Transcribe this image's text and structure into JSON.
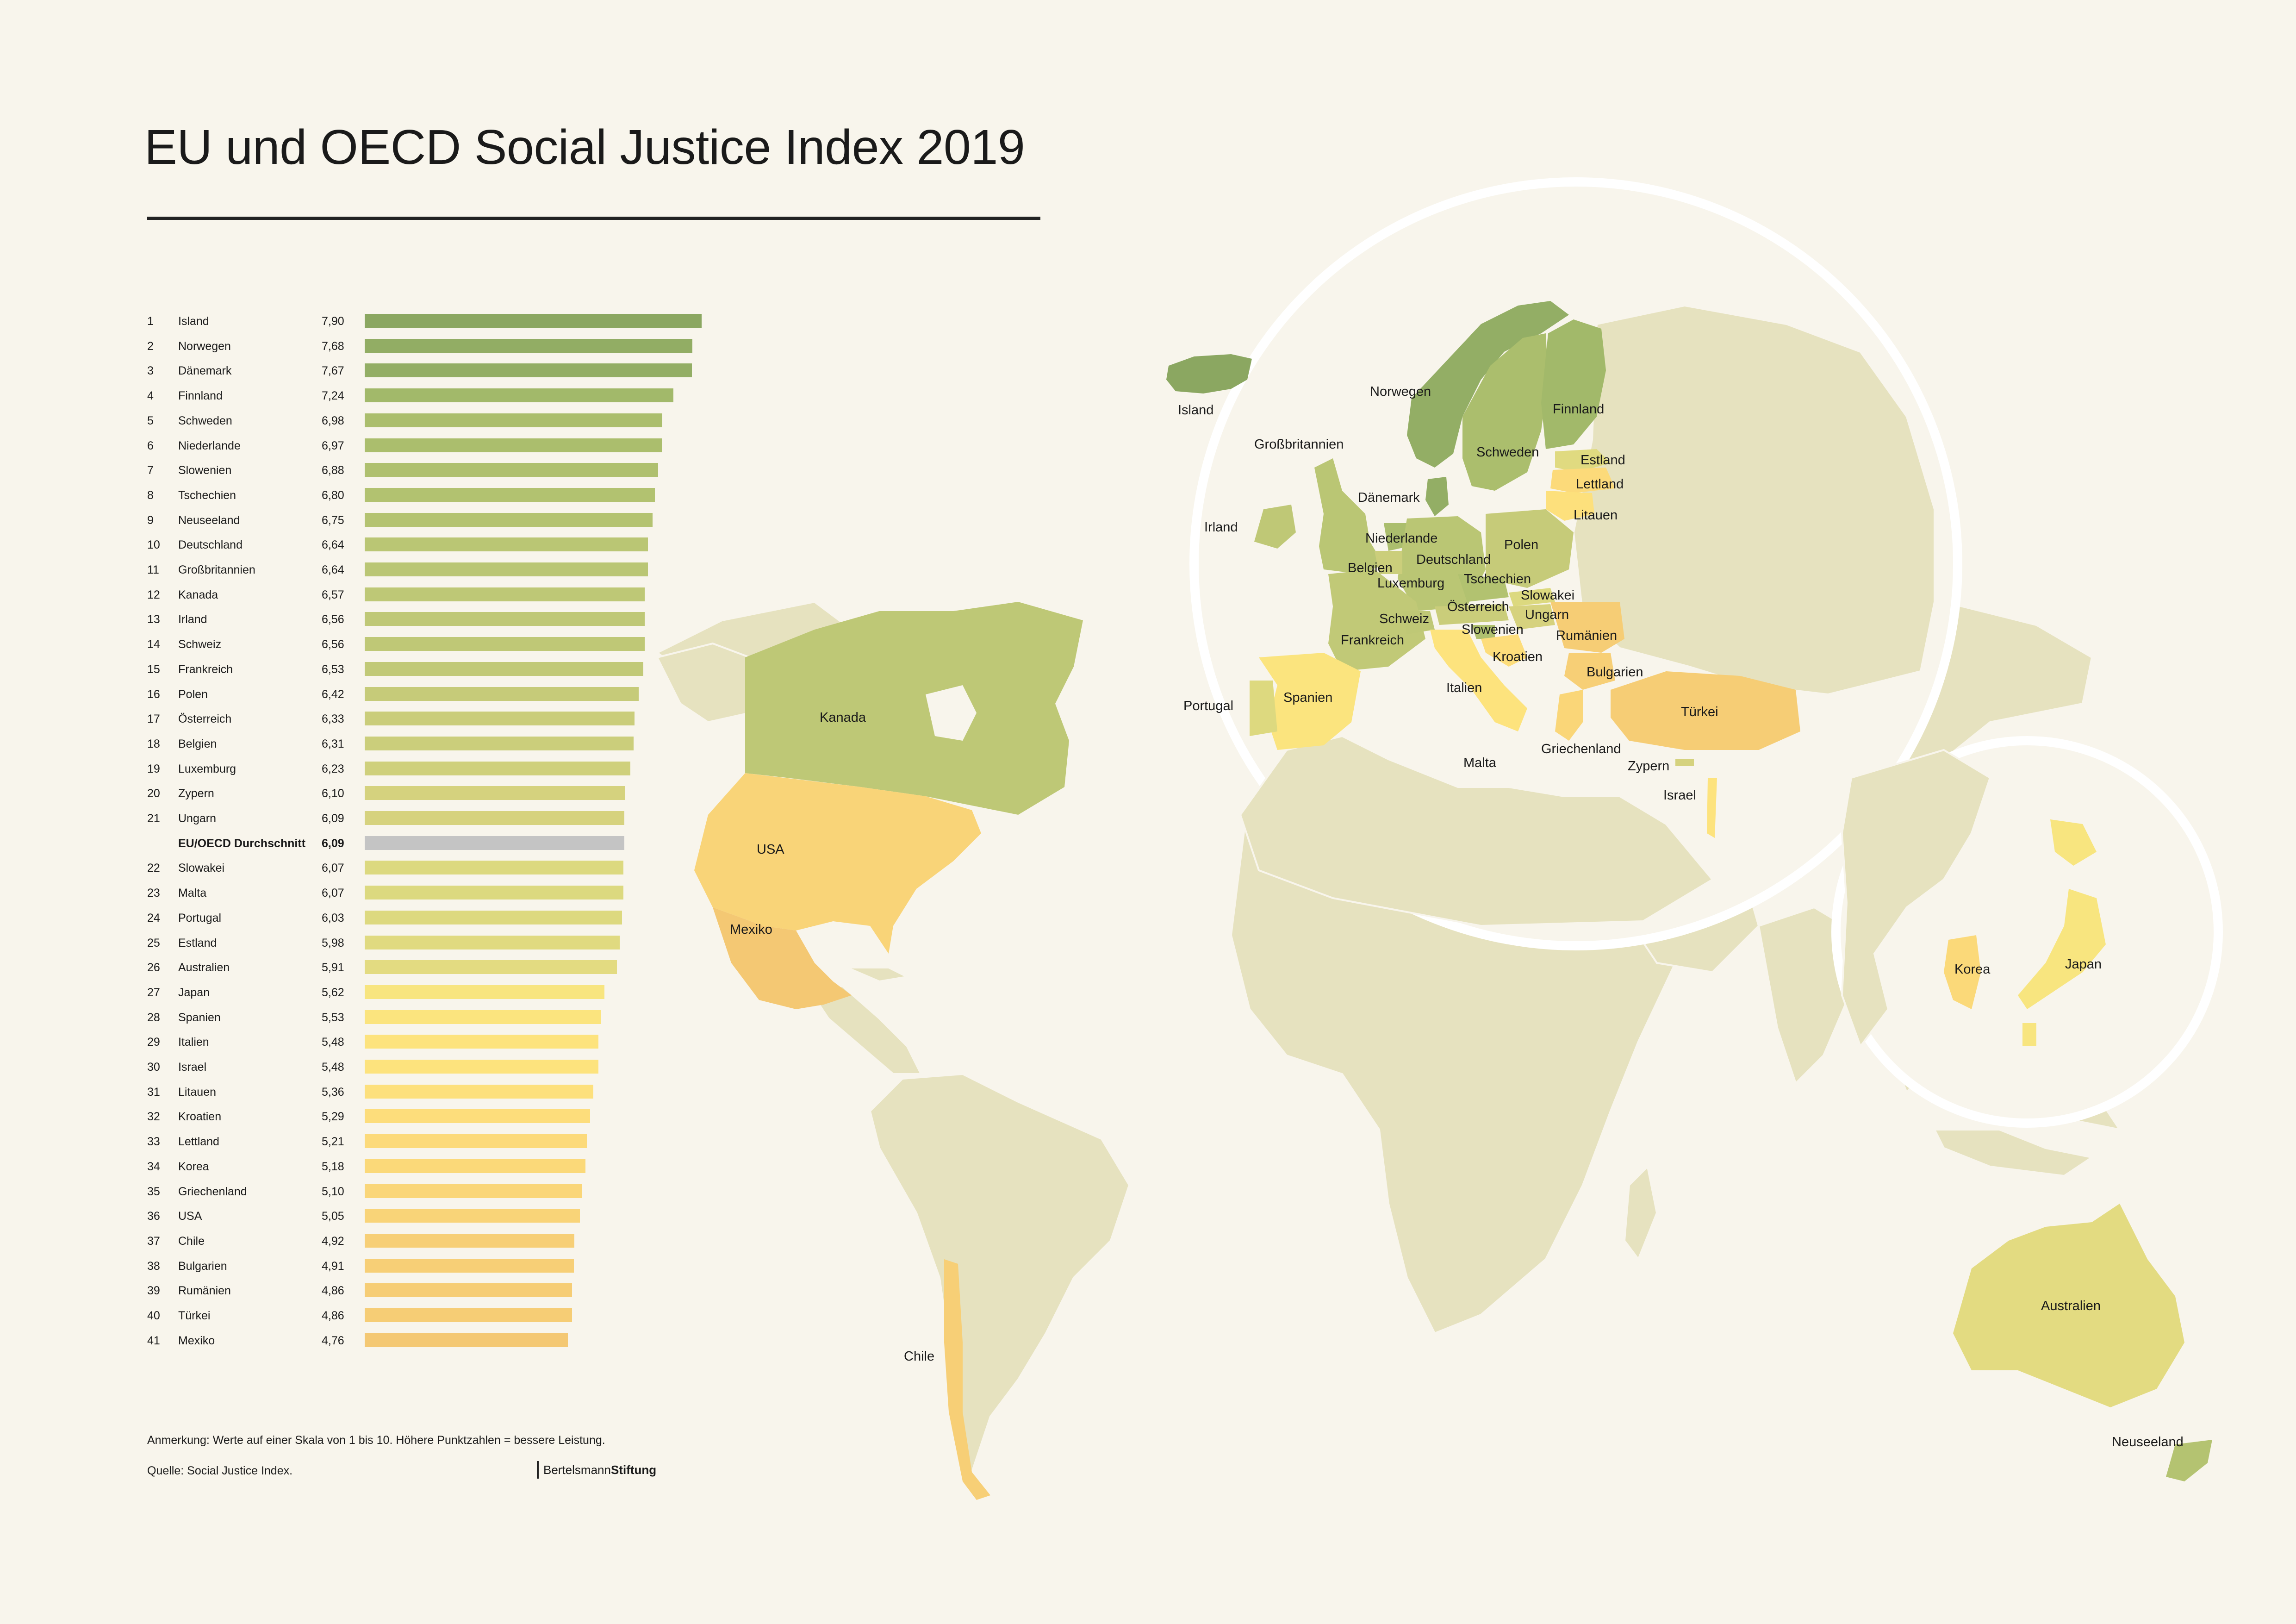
{
  "title": "EU und OECD Social Justice Index 2019",
  "chart_data": {
    "type": "bar",
    "orientation": "horizontal",
    "scale_note": "Werte auf einer Skala von 1 bis 10",
    "rows": [
      {
        "rank": "1",
        "country": "Island",
        "value": 7.9,
        "label": "7,90",
        "color": "#8ba761"
      },
      {
        "rank": "2",
        "country": "Norwegen",
        "value": 7.68,
        "label": "7,68",
        "color": "#92ad64"
      },
      {
        "rank": "3",
        "country": "Dänemark",
        "value": 7.67,
        "label": "7,67",
        "color": "#93ae65"
      },
      {
        "rank": "4",
        "country": "Finnland",
        "value": 7.24,
        "label": "7,24",
        "color": "#a2b96a"
      },
      {
        "rank": "5",
        "country": "Schweden",
        "value": 6.98,
        "label": "6,98",
        "color": "#abbe6d"
      },
      {
        "rank": "6",
        "country": "Niederlande",
        "value": 6.97,
        "label": "6,97",
        "color": "#abbe6d"
      },
      {
        "rank": "7",
        "country": "Slowenien",
        "value": 6.88,
        "label": "6,88",
        "color": "#afc06f"
      },
      {
        "rank": "8",
        "country": "Tschechien",
        "value": 6.8,
        "label": "6,80",
        "color": "#b2c270"
      },
      {
        "rank": "9",
        "country": "Neuseeland",
        "value": 6.75,
        "label": "6,75",
        "color": "#b4c371"
      },
      {
        "rank": "10",
        "country": "Deutschland",
        "value": 6.64,
        "label": "6,64",
        "color": "#bac674"
      },
      {
        "rank": "11",
        "country": "Großbritannien",
        "value": 6.64,
        "label": "6,64",
        "color": "#bac674"
      },
      {
        "rank": "12",
        "country": "Kanada",
        "value": 6.57,
        "label": "6,57",
        "color": "#bec876"
      },
      {
        "rank": "13",
        "country": "Irland",
        "value": 6.56,
        "label": "6,56",
        "color": "#bfc876"
      },
      {
        "rank": "14",
        "country": "Schweiz",
        "value": 6.56,
        "label": "6,56",
        "color": "#bfc876"
      },
      {
        "rank": "15",
        "country": "Frankreich",
        "value": 6.53,
        "label": "6,53",
        "color": "#c1c977"
      },
      {
        "rank": "16",
        "country": "Polen",
        "value": 6.42,
        "label": "6,42",
        "color": "#c6cb79"
      },
      {
        "rank": "17",
        "country": "Österreich",
        "value": 6.33,
        "label": "6,33",
        "color": "#cacd7a"
      },
      {
        "rank": "18",
        "country": "Belgien",
        "value": 6.31,
        "label": "6,31",
        "color": "#cbce7b"
      },
      {
        "rank": "19",
        "country": "Luxemburg",
        "value": 6.23,
        "label": "6,23",
        "color": "#cfd07c"
      },
      {
        "rank": "20",
        "country": "Zypern",
        "value": 6.1,
        "label": "6,10",
        "color": "#d5d27e"
      },
      {
        "rank": "21",
        "country": "Ungarn",
        "value": 6.09,
        "label": "6,09",
        "color": "#d6d27e"
      },
      {
        "rank": "",
        "country": "EU/OECD Durchschnitt",
        "value": 6.09,
        "label": "6,09",
        "color": "#c4c4c4",
        "average": true
      },
      {
        "rank": "22",
        "country": "Slowakei",
        "value": 6.07,
        "label": "6,07",
        "color": "#dcd97f"
      },
      {
        "rank": "23",
        "country": "Malta",
        "value": 6.07,
        "label": "6,07",
        "color": "#dcd97f"
      },
      {
        "rank": "24",
        "country": "Portugal",
        "value": 6.03,
        "label": "6,03",
        "color": "#ddd97f"
      },
      {
        "rank": "25",
        "country": "Estland",
        "value": 5.98,
        "label": "5,98",
        "color": "#e0da80"
      },
      {
        "rank": "26",
        "country": "Australien",
        "value": 5.91,
        "label": "5,91",
        "color": "#e3db81"
      },
      {
        "rank": "27",
        "country": "Japan",
        "value": 5.62,
        "label": "5,62",
        "color": "#f8e57f"
      },
      {
        "rank": "28",
        "country": "Spanien",
        "value": 5.53,
        "label": "5,53",
        "color": "#fbe47e"
      },
      {
        "rank": "29",
        "country": "Italien",
        "value": 5.48,
        "label": "5,48",
        "color": "#fde37d"
      },
      {
        "rank": "30",
        "country": "Israel",
        "value": 5.48,
        "label": "5,48",
        "color": "#fde37d"
      },
      {
        "rank": "31",
        "country": "Litauen",
        "value": 5.36,
        "label": "5,36",
        "color": "#fde07c"
      },
      {
        "rank": "32",
        "country": "Kroatien",
        "value": 5.29,
        "label": "5,29",
        "color": "#fddd7b"
      },
      {
        "rank": "33",
        "country": "Lettland",
        "value": 5.21,
        "label": "5,21",
        "color": "#fcda7a"
      },
      {
        "rank": "34",
        "country": "Korea",
        "value": 5.18,
        "label": "5,18",
        "color": "#fbd979"
      },
      {
        "rank": "35",
        "country": "Griechenland",
        "value": 5.1,
        "label": "5,10",
        "color": "#fad678"
      },
      {
        "rank": "36",
        "country": "USA",
        "value": 5.05,
        "label": "5,05",
        "color": "#f9d478"
      },
      {
        "rank": "37",
        "country": "Chile",
        "value": 4.92,
        "label": "4,92",
        "color": "#f7cf76"
      },
      {
        "rank": "38",
        "country": "Bulgarien",
        "value": 4.91,
        "label": "4,91",
        "color": "#f7cf76"
      },
      {
        "rank": "39",
        "country": "Rumänien",
        "value": 4.86,
        "label": "4,86",
        "color": "#f6cd75"
      },
      {
        "rank": "40",
        "country": "Türkei",
        "value": 4.86,
        "label": "4,86",
        "color": "#f6cd75"
      },
      {
        "rank": "41",
        "country": "Mexiko",
        "value": 4.76,
        "label": "4,76",
        "color": "#f4c873"
      }
    ]
  },
  "map": {
    "labels": {
      "island": "Island",
      "norwegen": "Norwegen",
      "finnland": "Finnland",
      "schweden": "Schweden",
      "grossbritannien": "Großbritannien",
      "estland": "Estland",
      "lettland": "Lettland",
      "daenemark": "Dänemark",
      "litauen": "Litauen",
      "irland": "Irland",
      "niederlande": "Niederlande",
      "polen": "Polen",
      "deutschland": "Deutschland",
      "belgien": "Belgien",
      "luxemburg": "Luxemburg",
      "tschechien": "Tschechien",
      "slowakei": "Slowakei",
      "oesterreich": "Österreich",
      "ungarn": "Ungarn",
      "schweiz": "Schweiz",
      "slowenien": "Slowenien",
      "rumaenien": "Rumänien",
      "frankreich": "Frankreich",
      "kroatien": "Kroatien",
      "bulgarien": "Bulgarien",
      "italien": "Italien",
      "spanien": "Spanien",
      "portugal": "Portugal",
      "tuerkei": "Türkei",
      "griechenland": "Griechenland",
      "malta": "Malta",
      "zypern": "Zypern",
      "israel": "Israel",
      "kanada": "Kanada",
      "usa": "USA",
      "mexiko": "Mexiko",
      "chile": "Chile",
      "korea": "Korea",
      "japan": "Japan",
      "australien": "Australien",
      "neuseeland": "Neuseeland"
    },
    "colors": {
      "land": "#e6e2bf",
      "ocean": "#f8f5ec",
      "circle": "#ffffff"
    }
  },
  "footer": {
    "note": "Anmerkung: Werte auf einer Skala von 1 bis 10. Höhere Punktzahlen = bessere Leistung.",
    "source": "Quelle: Social Justice Index.",
    "brand_light": "Bertelsmann",
    "brand_bold": "Stiftung"
  }
}
